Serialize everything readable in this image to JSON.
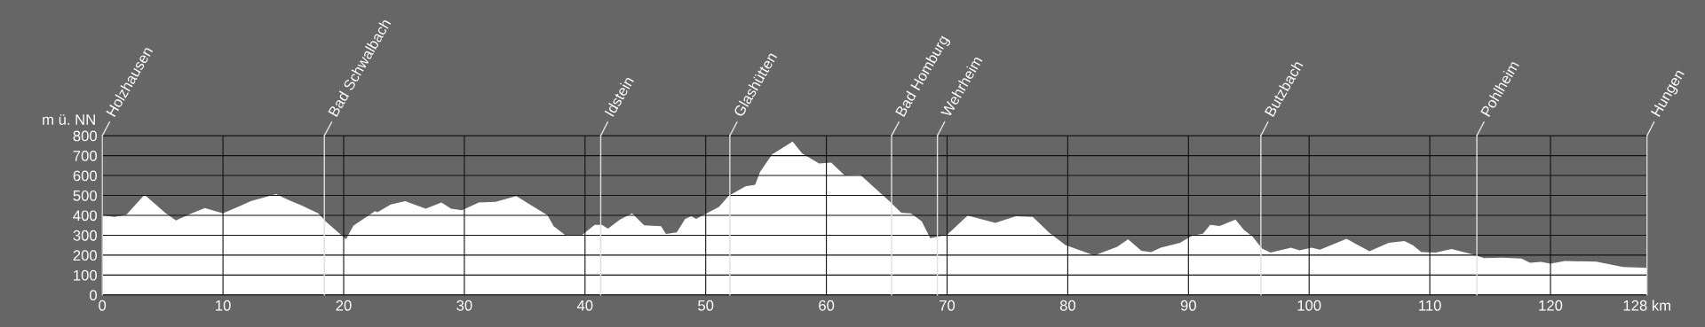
{
  "chart_data": {
    "type": "area",
    "ylabel": "m ü. NN",
    "x": [
      0,
      1.0,
      2.0,
      3.5,
      5.2,
      6.1,
      7.4,
      8.5,
      10.0,
      11.4,
      12.3,
      14.4,
      15.4,
      16.5,
      17.9,
      18.5,
      20.2,
      20.8,
      22.6,
      22.8,
      23.9,
      25.1,
      26.8,
      28.1,
      28.9,
      29.8,
      31.2,
      32.6,
      34.3,
      36.9,
      37.4,
      38.4,
      39.7,
      40.8,
      41.4,
      41.9,
      42.9,
      43.9,
      44.9,
      46.3,
      46.7,
      47.6,
      48.3,
      48.8,
      49.2,
      51.1,
      51.9,
      53.3,
      54.1,
      54.5,
      55.5,
      57.2,
      58.0,
      59.4,
      60.4,
      61.5,
      62.8,
      65.2,
      66.2,
      67.0,
      67.9,
      68.6,
      70.0,
      71.7,
      74.0,
      75.7,
      77.1,
      78.5,
      79.8,
      82.2,
      84.1,
      85.0,
      86.1,
      86.9,
      87.7,
      89.3,
      90.3,
      91.2,
      91.8,
      92.6,
      93.0,
      93.9,
      94.6,
      95.3,
      96.1,
      96.8,
      98.5,
      99.2,
      100.2,
      100.9,
      103.1,
      105.0,
      106.6,
      107.9,
      108.6,
      109.3,
      110.5,
      111.8,
      113.4,
      114.5,
      116.0,
      117.6,
      118.3,
      119.2,
      120.0,
      121.2,
      123.8,
      126.0,
      128.0
    ],
    "series": [
      {
        "color": "#ffffff",
        "values": [
          400,
          392,
          403,
          503,
          413,
          374,
          410,
          437,
          410,
          447,
          471,
          507,
          478,
          450,
          410,
          370,
          280,
          348,
          421,
          416,
          454,
          471,
          433,
          464,
          433,
          425,
          464,
          468,
          497,
          400,
          345,
          299,
          299,
          352,
          352,
          333,
          379,
          410,
          350,
          345,
          307,
          314,
          382,
          396,
          382,
          442,
          498,
          546,
          553,
          618,
          706,
          771,
          711,
          660,
          665,
          601,
          604,
          472,
          413,
          410,
          370,
          285,
          302,
          399,
          362,
          396,
          392,
          311,
          251,
          198,
          242,
          280,
          222,
          215,
          238,
          262,
          298,
          308,
          352,
          347,
          356,
          379,
          326,
          294,
          233,
          213,
          238,
          224,
          238,
          227,
          282,
          220,
          262,
          271,
          250,
          215,
          213,
          231,
          206,
          185,
          187,
          183,
          162,
          166,
          157,
          171,
          167,
          141,
          136
        ]
      }
    ],
    "xlim": [
      0,
      128
    ],
    "ylim": [
      0,
      800
    ],
    "xticks": [
      0,
      10,
      20,
      30,
      40,
      50,
      60,
      70,
      80,
      90,
      100,
      110,
      120,
      {
        "value": 128,
        "label": "128 km"
      }
    ],
    "yticks": [
      0,
      100,
      200,
      300,
      400,
      500,
      600,
      700,
      800
    ],
    "grid": true,
    "ref_lines": [
      {
        "axis": "x",
        "value": 0,
        "label": "Holzhausen",
        "color": "#e0e0e0"
      },
      {
        "axis": "x",
        "value": 18.4,
        "label": "Bad Schwalbach",
        "color": "#e0e0e0"
      },
      {
        "axis": "x",
        "value": 41.3,
        "label": "Idstein",
        "color": "#e0e0e0"
      },
      {
        "axis": "x",
        "value": 52.0,
        "label": "Glashütten",
        "color": "#e0e0e0"
      },
      {
        "axis": "x",
        "value": 65.4,
        "label": "Bad Homburg",
        "color": "#e0e0e0"
      },
      {
        "axis": "x",
        "value": 69.2,
        "label": "Wehrheim",
        "color": "#e0e0e0"
      },
      {
        "axis": "x",
        "value": 96.0,
        "label": "Butzbach",
        "color": "#e0e0e0"
      },
      {
        "axis": "x",
        "value": 113.9,
        "label": "Pohlheim",
        "color": "#e0e0e0"
      },
      {
        "axis": "x",
        "value": 128.0,
        "label": "Hungen",
        "color": "#e0e0e0"
      }
    ]
  }
}
